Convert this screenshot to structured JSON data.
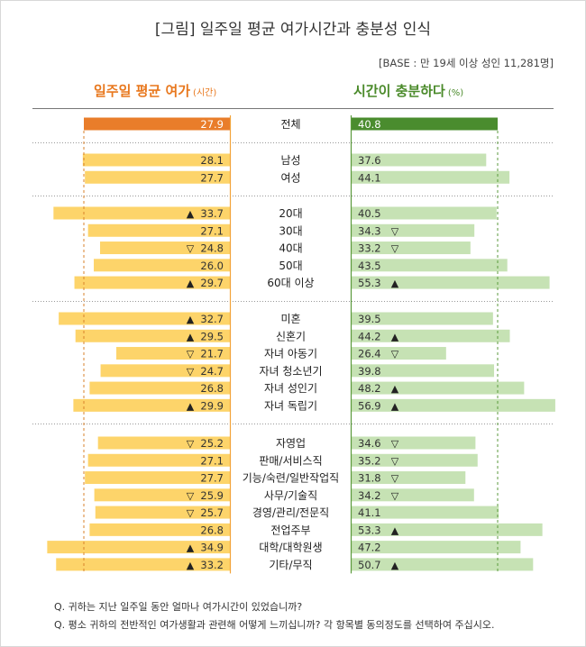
{
  "title": "[그림] 일주일 평균 여가시간과 충분성 인식",
  "base_note": "[BASE : 만 19세 이상 성인 11,281명]",
  "left_header": {
    "label": "일주일 평균 여가",
    "unit": "(시간)"
  },
  "right_header": {
    "label": "시간이 충분하다",
    "unit": "(%)"
  },
  "colors": {
    "orange_total": "#e97d2a",
    "yellow_bar": "#fdd46a",
    "green_total": "#4a8c2e",
    "green_bar": "#c6e2b4",
    "left_title": "#e8781e",
    "right_title": "#4a8a2a"
  },
  "chart_data": {
    "type": "bar",
    "series": [
      {
        "name": "일주일 평균 여가 (시간)",
        "values": [
          27.9,
          28.1,
          27.7,
          33.7,
          27.1,
          24.8,
          26.0,
          29.7,
          32.7,
          29.5,
          21.7,
          24.7,
          26.8,
          29.9,
          25.2,
          27.1,
          27.7,
          25.9,
          25.7,
          26.8,
          34.9,
          33.2
        ]
      },
      {
        "name": "시간이 충분하다 (%)",
        "values": [
          40.8,
          37.6,
          44.1,
          40.5,
          34.3,
          33.2,
          43.5,
          55.3,
          39.5,
          44.2,
          26.4,
          39.8,
          48.2,
          56.9,
          34.6,
          35.2,
          31.8,
          34.2,
          41.1,
          53.3,
          47.2,
          50.7
        ]
      }
    ],
    "categories": [
      "전체",
      "남성",
      "여성",
      "20대",
      "30대",
      "40대",
      "50대",
      "60대 이상",
      "미혼",
      "신혼기",
      "자녀 아동기",
      "자녀 청소년기",
      "자녀 성인기",
      "자녀 독립기",
      "자영업",
      "판매/서비스직",
      "기능/숙련/일반작업직",
      "사무/기술직",
      "경영/관리/전문직",
      "전업주부",
      "대학/대학원생",
      "기타/무직"
    ],
    "left_markers": [
      "",
      "",
      "",
      "▲",
      "",
      "▽",
      "",
      "▲",
      "▲",
      "▲",
      "▽",
      "▽",
      "",
      "▲",
      "▽",
      "",
      "",
      "▽",
      "▽",
      "",
      "▲",
      "▲"
    ],
    "right_markers": [
      "",
      "",
      "",
      "",
      "▽",
      "▽",
      "",
      "▲",
      "",
      "▲",
      "▽",
      "",
      "▲",
      "▲",
      "▽",
      "▽",
      "▽",
      "▽",
      "",
      "▲",
      "",
      "▲"
    ],
    "group_sizes": [
      1,
      2,
      5,
      6,
      8
    ],
    "left_reference": 27.9,
    "right_reference": 40.8
  },
  "notes": [
    "Q. 귀하는 지난 일주일 동안 얼마나 여가시간이 있었습니까?",
    "Q. 평소 귀하의 전반적인 여가생활과 관련해 어떻게 느끼십니까? 각 항목별 동의정도를 선택하여 주십시오."
  ]
}
